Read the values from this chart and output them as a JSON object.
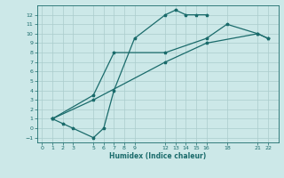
{
  "xlabel": "Humidex (Indice chaleur)",
  "xlim": [
    -0.5,
    23
  ],
  "ylim": [
    -1.5,
    13
  ],
  "xticks": [
    0,
    1,
    2,
    3,
    5,
    6,
    7,
    8,
    9,
    12,
    13,
    14,
    15,
    16,
    18,
    21,
    22
  ],
  "yticks": [
    -1,
    0,
    1,
    2,
    3,
    4,
    5,
    6,
    7,
    8,
    9,
    10,
    11,
    12
  ],
  "bg_color": "#cce8e8",
  "grid_color": "#aacccc",
  "line_color": "#1a6b6b",
  "line1_x": [
    1,
    2,
    3,
    5,
    6,
    7,
    9,
    12,
    13,
    14,
    15,
    16
  ],
  "line1_y": [
    1.0,
    0.5,
    0.0,
    -1.0,
    0.0,
    4.0,
    9.5,
    12.0,
    12.5,
    12.0,
    12.0,
    12.0
  ],
  "line2_x": [
    1,
    5,
    12,
    16,
    21,
    22
  ],
  "line2_y": [
    1.0,
    3.0,
    7.0,
    9.0,
    10.0,
    9.5
  ],
  "line3_x": [
    1,
    5,
    7,
    12,
    16,
    18,
    21,
    22
  ],
  "line3_y": [
    1.0,
    3.5,
    8.0,
    8.0,
    9.5,
    11.0,
    10.0,
    9.5
  ]
}
